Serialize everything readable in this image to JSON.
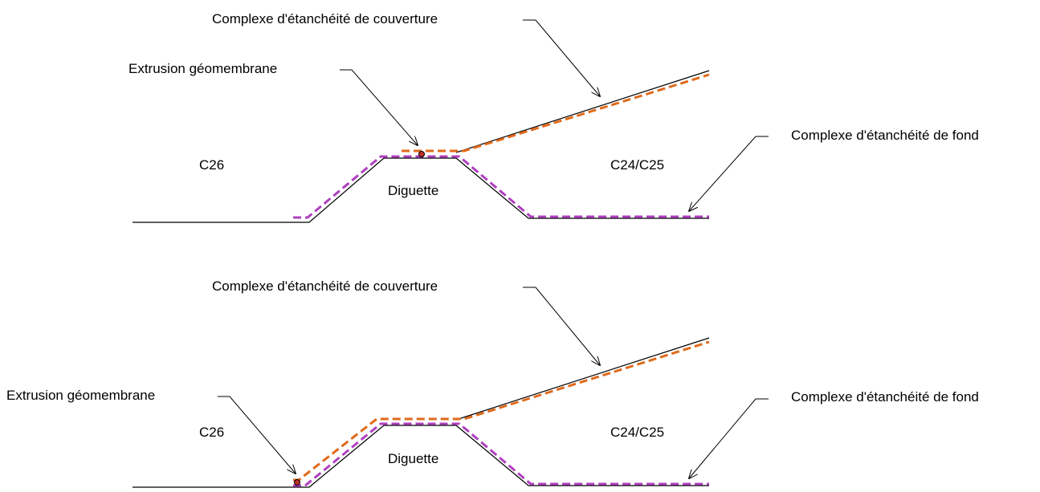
{
  "colors": {
    "ground": "#000000",
    "cover_liner": "#E06A1B",
    "bottom_liner": "#B040C0",
    "weld": "#C0302A"
  },
  "top": {
    "label_cover": "Complexe d'étanchéité de couverture",
    "label_extrusion": "Extrusion géomembrane",
    "label_bottom": "Complexe d'étanchéité de fond",
    "label_left_cell": "C26",
    "label_right_cell": "C24/C25",
    "label_berm": "Diguette"
  },
  "bottom": {
    "label_cover": "Complexe d'étanchéité de couverture",
    "label_extrusion": "Extrusion géomembrane",
    "label_bottom": "Complexe d'étanchéité de fond",
    "label_left_cell": "C26",
    "label_right_cell": "C24/C25",
    "label_berm": "Diguette"
  }
}
